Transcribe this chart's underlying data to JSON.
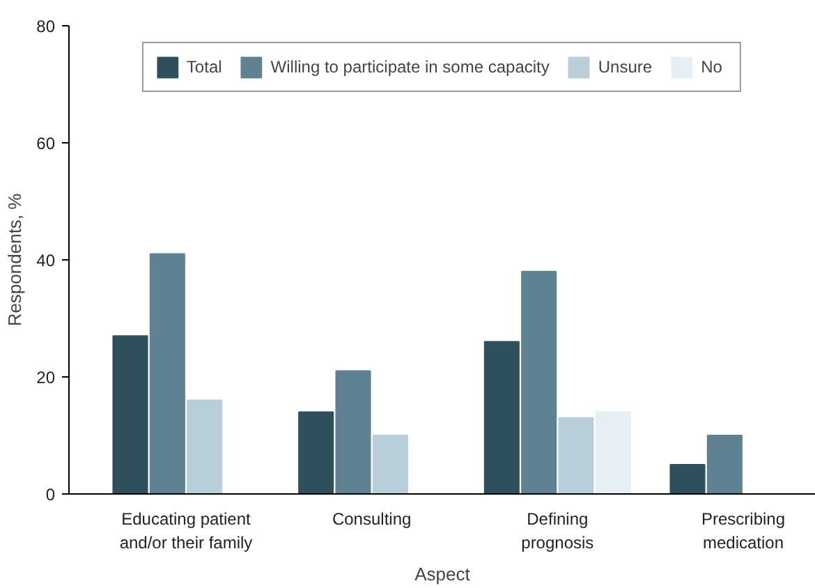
{
  "chart_data": {
    "type": "bar",
    "xlabel": "Aspect",
    "ylabel": "Respondents, %",
    "categories": [
      "Educating patient\nand/or their family",
      "Consulting",
      "Defining\nprognosis",
      "Prescribing\nmedication"
    ],
    "series": [
      {
        "name": "Total",
        "color": "#2e4f5c",
        "values": [
          27,
          14,
          26,
          5
        ]
      },
      {
        "name": "Willing to participate in some capacity",
        "color": "#5e8291",
        "values": [
          41,
          21,
          38,
          10
        ]
      },
      {
        "name": "Unsure",
        "color": "#b8ced8",
        "values": [
          16,
          10,
          13,
          0
        ]
      },
      {
        "name": "No",
        "color": "#e6eff3",
        "values": [
          0,
          0,
          14,
          0
        ]
      }
    ],
    "ylim": [
      0,
      80
    ],
    "yticks": [
      0,
      20,
      40,
      60,
      80
    ],
    "grid": false,
    "legend": "top"
  }
}
